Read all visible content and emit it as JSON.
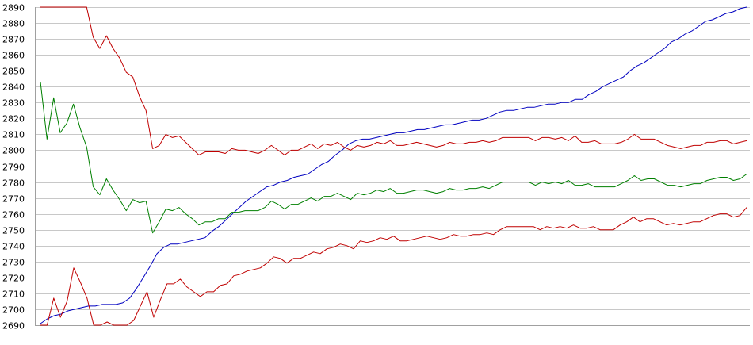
{
  "chart_data": {
    "type": "line",
    "title": "",
    "xlabel": "",
    "ylabel": "",
    "ylim": [
      2690,
      2890
    ],
    "yticks": [
      2690,
      2700,
      2710,
      2720,
      2730,
      2740,
      2750,
      2760,
      2770,
      2780,
      2790,
      2800,
      2810,
      2820,
      2830,
      2840,
      2850,
      2860,
      2870,
      2880,
      2890
    ],
    "grid": true,
    "legend": "none",
    "series": [
      {
        "color": "#0000c0",
        "values": [
          2691,
          2694,
          2696,
          2697,
          2699,
          2700,
          2701,
          2702,
          2702,
          2703,
          2703,
          2703,
          2704,
          2707,
          2713,
          2720,
          2727,
          2735,
          2739,
          2741,
          2741,
          2742,
          2743,
          2744,
          2745,
          2749,
          2752,
          2756,
          2760,
          2764,
          2768,
          2771,
          2774,
          2777,
          2778,
          2780,
          2781,
          2783,
          2784,
          2785,
          2788,
          2791,
          2793,
          2797,
          2800,
          2804,
          2806,
          2807,
          2807,
          2808,
          2809,
          2810,
          2811,
          2811,
          2812,
          2813,
          2813,
          2814,
          2815,
          2816,
          2816,
          2817,
          2818,
          2819,
          2819,
          2820,
          2822,
          2824,
          2825,
          2825,
          2826,
          2827,
          2827,
          2828,
          2829,
          2829,
          2830,
          2830,
          2832,
          2832,
          2835,
          2837,
          2840,
          2842,
          2844,
          2846,
          2850,
          2853,
          2855,
          2858,
          2861,
          2864,
          2868,
          2870,
          2873,
          2875,
          2878,
          2881,
          2882,
          2884,
          2886,
          2887,
          2889,
          2890
        ]
      },
      {
        "color": "#c00000",
        "values": [
          2890,
          2890,
          2890,
          2890,
          2890,
          2890,
          2890,
          2890,
          2871,
          2864,
          2872,
          2864,
          2858,
          2849,
          2846,
          2834,
          2825,
          2801,
          2803,
          2810,
          2808,
          2809,
          2805,
          2801,
          2797,
          2799,
          2799,
          2799,
          2798,
          2801,
          2800,
          2800,
          2799,
          2798,
          2800,
          2803,
          2800,
          2797,
          2800,
          2800,
          2802,
          2804,
          2801,
          2804,
          2803,
          2805,
          2802,
          2800,
          2803,
          2802,
          2803,
          2805,
          2804,
          2806,
          2803,
          2803,
          2804,
          2805,
          2804,
          2803,
          2802,
          2803,
          2805,
          2804,
          2804,
          2805,
          2805,
          2806,
          2805,
          2806,
          2808,
          2808,
          2808,
          2808,
          2808,
          2806,
          2808,
          2808,
          2807,
          2808,
          2806,
          2809,
          2805,
          2805,
          2806,
          2804,
          2804,
          2804,
          2805,
          2807,
          2810,
          2807,
          2807,
          2807,
          2805,
          2803,
          2802,
          2801,
          2802,
          2803,
          2803,
          2805,
          2805,
          2806,
          2806,
          2804,
          2805,
          2806
        ]
      },
      {
        "color": "#008000",
        "values": [
          2843,
          2807,
          2833,
          2811,
          2817,
          2829,
          2814,
          2802,
          2777,
          2772,
          2782,
          2775,
          2769,
          2762,
          2769,
          2767,
          2768,
          2748,
          2755,
          2763,
          2762,
          2764,
          2760,
          2757,
          2753,
          2755,
          2755,
          2757,
          2757,
          2761,
          2761,
          2762,
          2762,
          2762,
          2764,
          2768,
          2766,
          2763,
          2766,
          2766,
          2768,
          2770,
          2768,
          2771,
          2771,
          2773,
          2771,
          2769,
          2773,
          2772,
          2773,
          2775,
          2774,
          2776,
          2773,
          2773,
          2774,
          2775,
          2775,
          2774,
          2773,
          2774,
          2776,
          2775,
          2775,
          2776,
          2776,
          2777,
          2776,
          2778,
          2780,
          2780,
          2780,
          2780,
          2780,
          2778,
          2780,
          2779,
          2780,
          2779,
          2781,
          2778,
          2778,
          2779,
          2777,
          2777,
          2777,
          2777,
          2779,
          2781,
          2784,
          2781,
          2782,
          2782,
          2780,
          2778,
          2778,
          2777,
          2778,
          2779,
          2779,
          2781,
          2782,
          2783,
          2783,
          2781,
          2782,
          2785
        ]
      },
      {
        "color": "#c00000",
        "values": [
          2690,
          2690,
          2707,
          2695,
          2705,
          2726,
          2717,
          2707,
          2690,
          2690,
          2692,
          2690,
          2690,
          2690,
          2693,
          2702,
          2711,
          2695,
          2706,
          2716,
          2716,
          2719,
          2714,
          2711,
          2708,
          2711,
          2711,
          2715,
          2716,
          2721,
          2722,
          2724,
          2725,
          2726,
          2729,
          2733,
          2732,
          2729,
          2732,
          2732,
          2734,
          2736,
          2735,
          2738,
          2739,
          2741,
          2740,
          2738,
          2743,
          2742,
          2743,
          2745,
          2744,
          2746,
          2743,
          2743,
          2744,
          2745,
          2746,
          2745,
          2744,
          2745,
          2747,
          2746,
          2746,
          2747,
          2747,
          2748,
          2747,
          2750,
          2752,
          2752,
          2752,
          2752,
          2752,
          2750,
          2752,
          2751,
          2752,
          2751,
          2753,
          2751,
          2751,
          2752,
          2750,
          2750,
          2750,
          2753,
          2755,
          2758,
          2755,
          2757,
          2757,
          2755,
          2753,
          2754,
          2753,
          2754,
          2755,
          2755,
          2757,
          2759,
          2760,
          2760,
          2758,
          2759,
          2764
        ]
      }
    ]
  }
}
